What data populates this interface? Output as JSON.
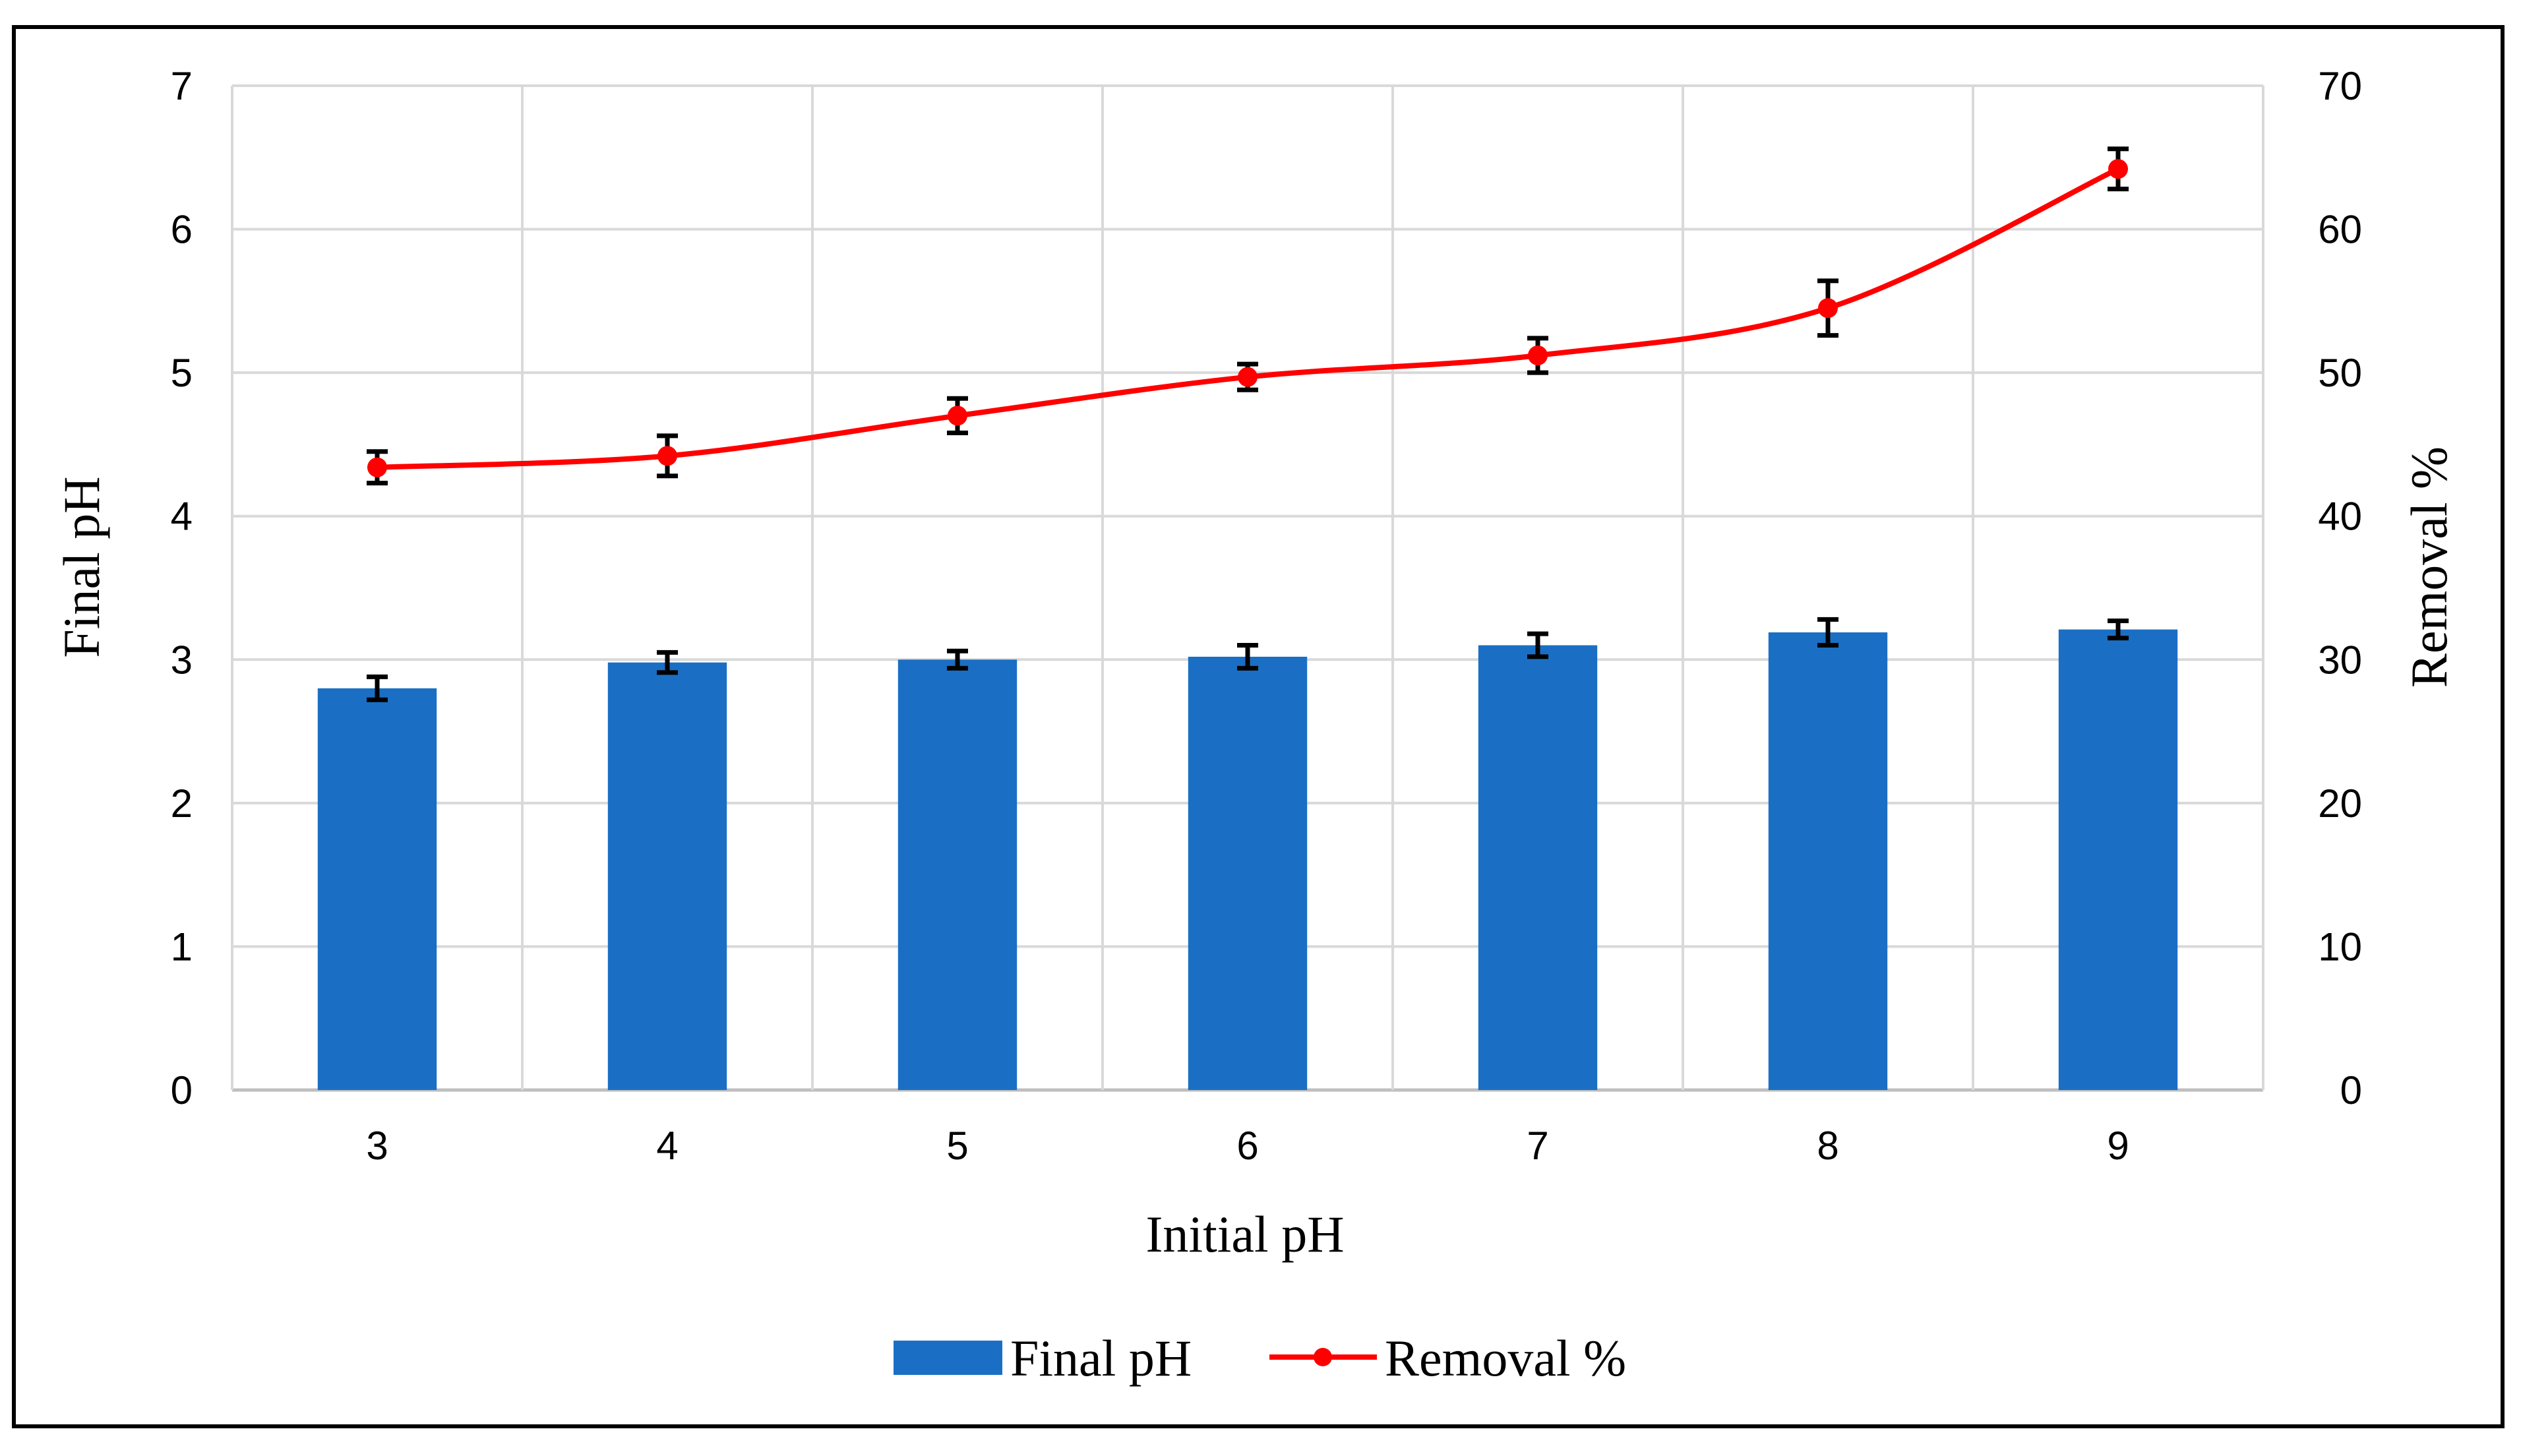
{
  "chart_data": {
    "type": "bar",
    "title": "",
    "xlabel": "Initial pH",
    "ylabel": "Final pH",
    "y2label": "Removal %",
    "categories": [
      "3",
      "4",
      "5",
      "6",
      "7",
      "8",
      "9"
    ],
    "ylim": [
      0,
      7
    ],
    "y2lim": [
      0,
      70
    ],
    "yticks": [
      "0",
      "1",
      "2",
      "3",
      "4",
      "5",
      "6",
      "7"
    ],
    "y2ticks": [
      "0",
      "10",
      "20",
      "30",
      "40",
      "50",
      "60",
      "70"
    ],
    "grid": true,
    "legend_position": "bottom",
    "series": [
      {
        "name": "Final pH",
        "type": "bar",
        "axis": "left",
        "color": "#1a6fc4",
        "values": [
          2.8,
          2.98,
          3.0,
          3.02,
          3.1,
          3.19,
          3.21
        ],
        "errors": [
          0.08,
          0.07,
          0.06,
          0.08,
          0.08,
          0.09,
          0.06
        ]
      },
      {
        "name": "Removal %",
        "type": "line",
        "axis": "right",
        "color": "#ff0000",
        "values": [
          43.4,
          44.2,
          47.0,
          49.7,
          51.2,
          54.5,
          64.2
        ],
        "errors": [
          1.1,
          1.4,
          1.2,
          0.9,
          1.2,
          1.9,
          1.4
        ]
      }
    ]
  }
}
